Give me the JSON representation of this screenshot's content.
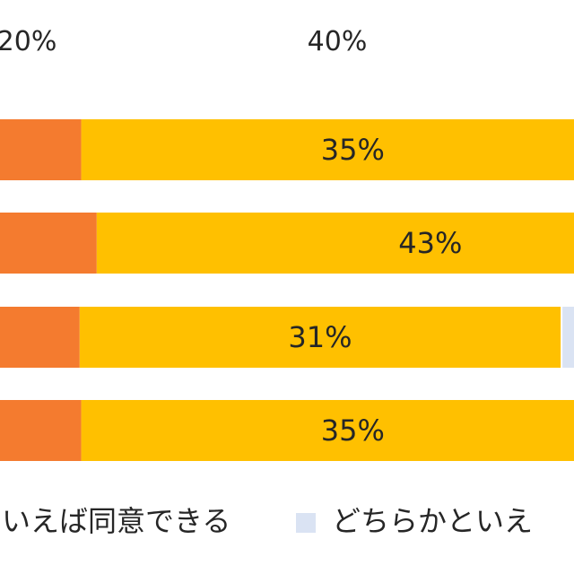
{
  "chart_data": {
    "type": "bar",
    "orientation": "horizontal",
    "stacked": true,
    "x_ticks": [
      "20%",
      "40%"
    ],
    "series": [
      {
        "name": "",
        "color": "#f47b2f",
        "values": [
          null,
          null,
          null,
          null
        ]
      },
      {
        "name": "いえば同意できる",
        "color": "#ffc000",
        "values": [
          35,
          43,
          31,
          35
        ],
        "labels": [
          "35%",
          "43%",
          "31%",
          "35%"
        ]
      },
      {
        "name": "どちらかといえ",
        "color": "#dae3f3",
        "values": [
          null,
          null,
          null,
          null
        ]
      }
    ],
    "legend_position": "bottom"
  }
}
